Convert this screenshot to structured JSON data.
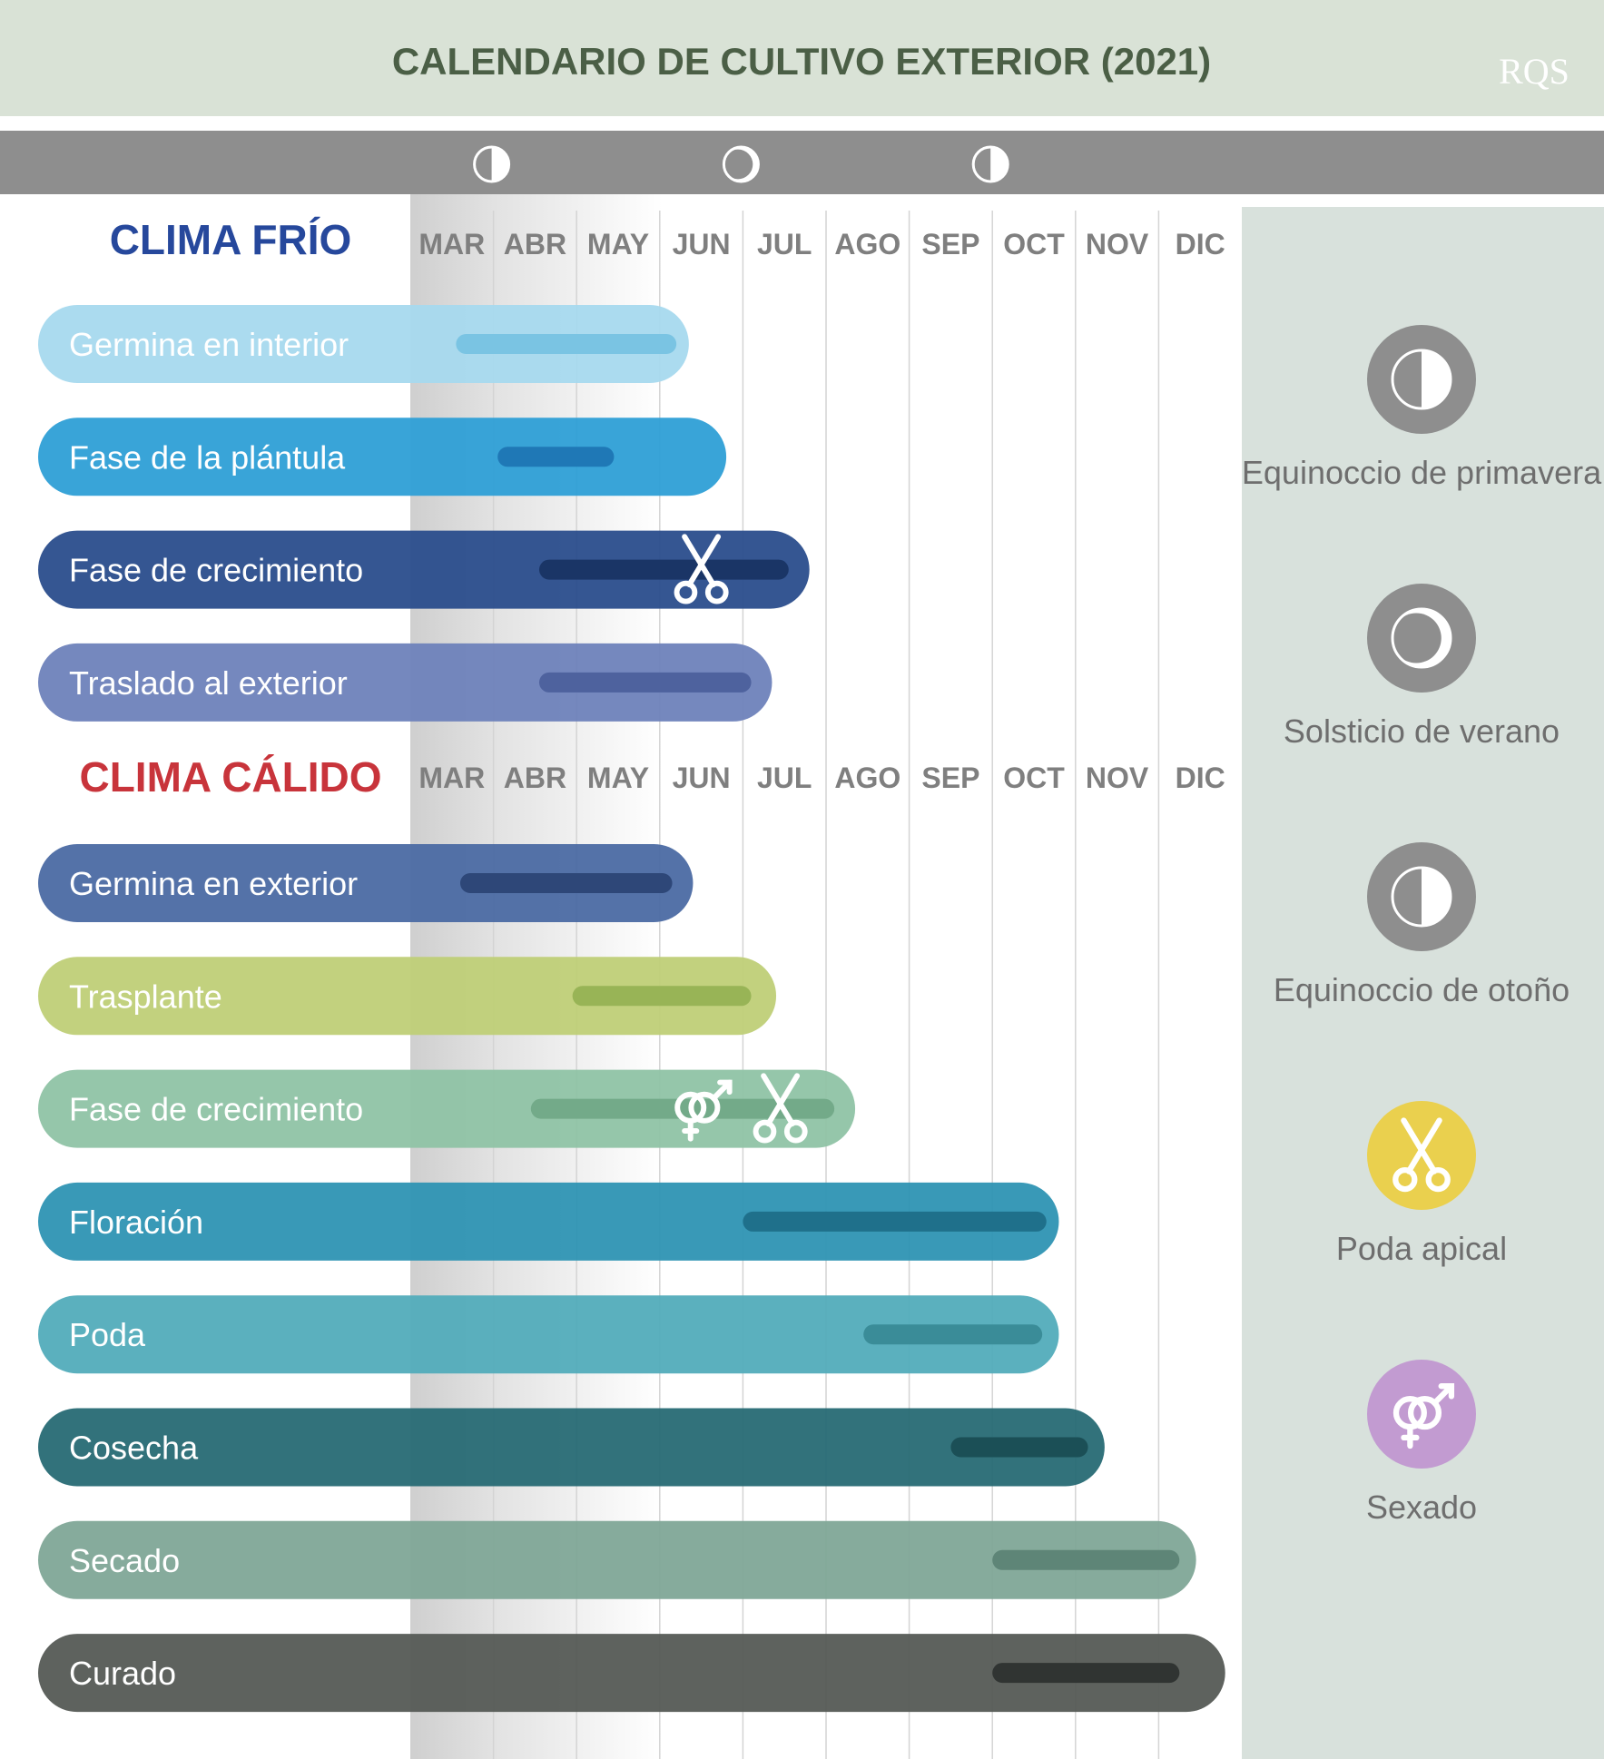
{
  "header": {
    "title": "CALENDARIO DE CULTIVO EXTERIOR (2021)",
    "logo_text": "RQS"
  },
  "colors": {
    "header_bg": "#d9e2d6",
    "title": "#4b5f46",
    "moon_band": "#8e8e8e",
    "legend_panel": "#d8e1dc",
    "cold_title": "#26489c",
    "warm_title": "#c8343b",
    "month": "#7f7f7f",
    "legend_text": "#6e6e6e"
  },
  "chart_data": {
    "type": "gantt",
    "title": "CALENDARIO DE CULTIVO EXTERIOR (2021)",
    "months": [
      "MAR",
      "ABR",
      "MAY",
      "JUN",
      "JUL",
      "AGO",
      "SEP",
      "OCT",
      "NOV",
      "DIC"
    ],
    "moon_markers": [
      {
        "month_position": 1,
        "icon": "half-moon-icon"
      },
      {
        "month_position": 4,
        "icon": "crescent-moon-icon"
      },
      {
        "month_position": 7,
        "icon": "half-moon-icon"
      }
    ],
    "sections": [
      {
        "name": "CLIMA FRÍO",
        "color": "#26489c",
        "tasks": [
          {
            "label": "Germina en interior",
            "bar_end": 3.35,
            "start": 0.55,
            "end": 3.2,
            "color": "#a7d9ee",
            "inner": "#7ac4e3",
            "text_color": "#ffffff",
            "markers": []
          },
          {
            "label": "Fase de la plántula",
            "bar_end": 3.8,
            "start": 1.05,
            "end": 2.45,
            "color": "#2e9fd6",
            "inner": "#1f78b6",
            "text_color": "#ffffff",
            "markers": []
          },
          {
            "label": "Fase de crecimiento",
            "bar_end": 4.8,
            "start": 1.55,
            "end": 4.55,
            "color": "#2a4d8c",
            "inner": "#1a3566",
            "text_color": "#ffffff",
            "markers": [
              {
                "month_position": 3.5,
                "icon": "scissors-icon"
              }
            ]
          },
          {
            "label": "Traslado al exterior",
            "bar_end": 4.35,
            "start": 1.55,
            "end": 4.1,
            "color": "#6e82bb",
            "inner": "#4e629e",
            "text_color": "#ffffff",
            "markers": []
          }
        ]
      },
      {
        "name": "CLIMA CÁLIDO",
        "color": "#c8343b",
        "tasks": [
          {
            "label": "Germina en exterior",
            "bar_end": 3.4,
            "start": 0.6,
            "end": 3.15,
            "color": "#4b6aa3",
            "inner": "#2e4778",
            "text_color": "#ffffff",
            "markers": []
          },
          {
            "label": "Trasplante",
            "bar_end": 4.4,
            "start": 1.95,
            "end": 4.1,
            "color": "#bfcf77",
            "inner": "#98b456",
            "text_color": "#ffffff",
            "markers": []
          },
          {
            "label": "Fase de crecimiento",
            "bar_end": 5.35,
            "start": 1.45,
            "end": 5.1,
            "color": "#8fc3a5",
            "inner": "#73aa89",
            "text_color": "#ffffff",
            "markers": [
              {
                "month_position": 3.5,
                "icon": "sex-symbol-icon"
              },
              {
                "month_position": 4.45,
                "icon": "scissors-icon"
              }
            ]
          },
          {
            "label": "Floración",
            "bar_end": 7.8,
            "start": 4.0,
            "end": 7.65,
            "color": "#2e93b3",
            "inner": "#1f708b",
            "text_color": "#ffffff",
            "markers": []
          },
          {
            "label": "Poda",
            "bar_end": 7.8,
            "start": 5.45,
            "end": 7.6,
            "color": "#52acba",
            "inner": "#3a8c98",
            "text_color": "#ffffff",
            "markers": []
          },
          {
            "label": "Cosecha",
            "bar_end": 8.35,
            "start": 6.5,
            "end": 8.15,
            "color": "#276a74",
            "inner": "#1b4f56",
            "text_color": "#ffffff",
            "markers": []
          },
          {
            "label": "Secado",
            "bar_end": 9.45,
            "start": 7.0,
            "end": 9.25,
            "color": "#7fa697",
            "inner": "#5e8577",
            "text_color": "#ffffff",
            "markers": []
          },
          {
            "label": "Curado",
            "bar_end": 9.8,
            "start": 7.0,
            "end": 9.25,
            "color": "#555a55",
            "inner": "#303432",
            "text_color": "#ffffff",
            "markers": []
          }
        ]
      }
    ],
    "legend": [
      {
        "label": "Equinoccio de primavera",
        "icon": "half-moon-icon",
        "color": "#8e8e8e"
      },
      {
        "label": "Solsticio de verano",
        "icon": "crescent-moon-icon",
        "color": "#8e8e8e"
      },
      {
        "label": "Equinoccio de otoño",
        "icon": "half-moon-icon",
        "color": "#8e8e8e"
      },
      {
        "label": "Poda apical",
        "icon": "scissors-icon",
        "color": "#ead04e"
      },
      {
        "label": "Sexado",
        "icon": "sex-symbol-icon",
        "color": "#c29bd1"
      }
    ]
  }
}
